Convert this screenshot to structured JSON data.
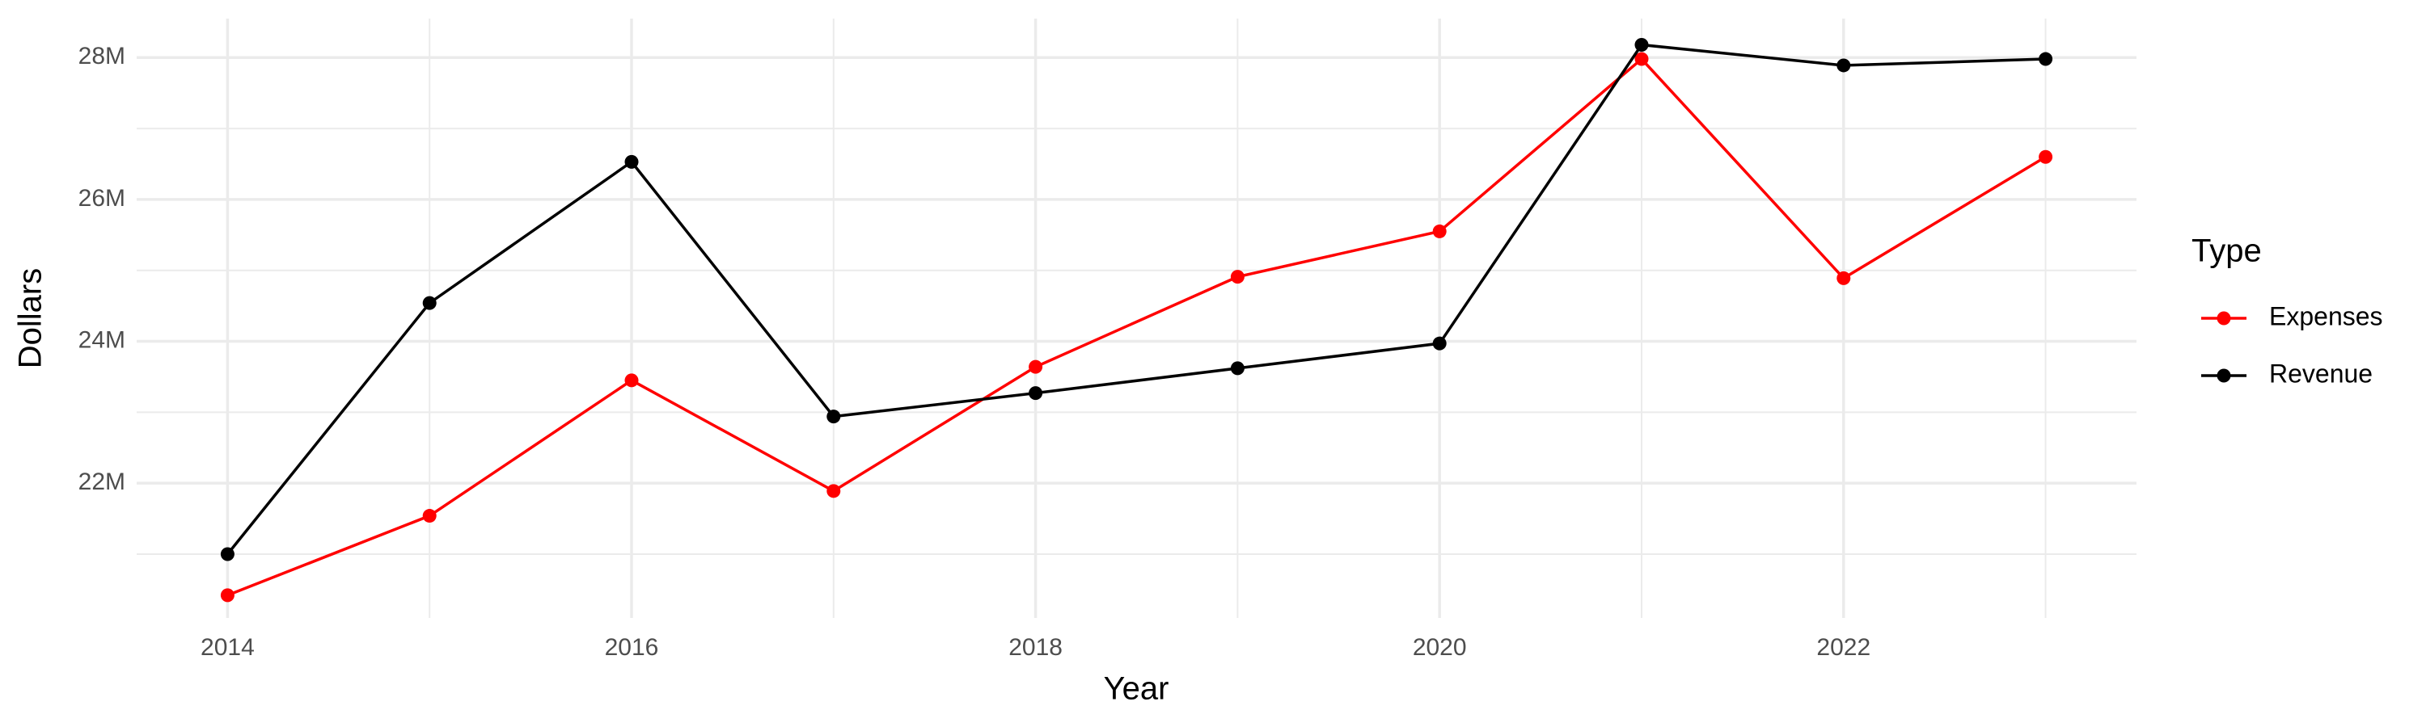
{
  "chart_data": {
    "type": "line",
    "x_label": "Year",
    "y_label": "Dollars",
    "legend_title": "Type",
    "x": [
      2014,
      2015,
      2016,
      2017,
      2018,
      2019,
      2020,
      2021,
      2022,
      2023
    ],
    "series": [
      {
        "name": "Expenses",
        "color": "#ff0000",
        "values": [
          20420000,
          21540000,
          23450000,
          21890000,
          23640000,
          24910000,
          25550000,
          27980000,
          24890000,
          26600000
        ]
      },
      {
        "name": "Revenue",
        "color": "#000000",
        "values": [
          21000000,
          24540000,
          26530000,
          22940000,
          23270000,
          23620000,
          23970000,
          28180000,
          27890000,
          27980000
        ]
      }
    ],
    "xlim": [
      2013.55,
      2023.45
    ],
    "xticks": [
      2014,
      2016,
      2018,
      2020,
      2022
    ],
    "x_minor_ticks": [
      2015,
      2017,
      2019,
      2021,
      2023
    ],
    "ylim": [
      20100000,
      28550000
    ],
    "yticks": [
      {
        "value": 22000000,
        "label": "22M"
      },
      {
        "value": 24000000,
        "label": "24M"
      },
      {
        "value": 26000000,
        "label": "26M"
      },
      {
        "value": 28000000,
        "label": "28M"
      }
    ],
    "y_minor_ticks": [
      21000000,
      23000000,
      25000000,
      27000000
    ],
    "grid": true,
    "legend": "right"
  }
}
